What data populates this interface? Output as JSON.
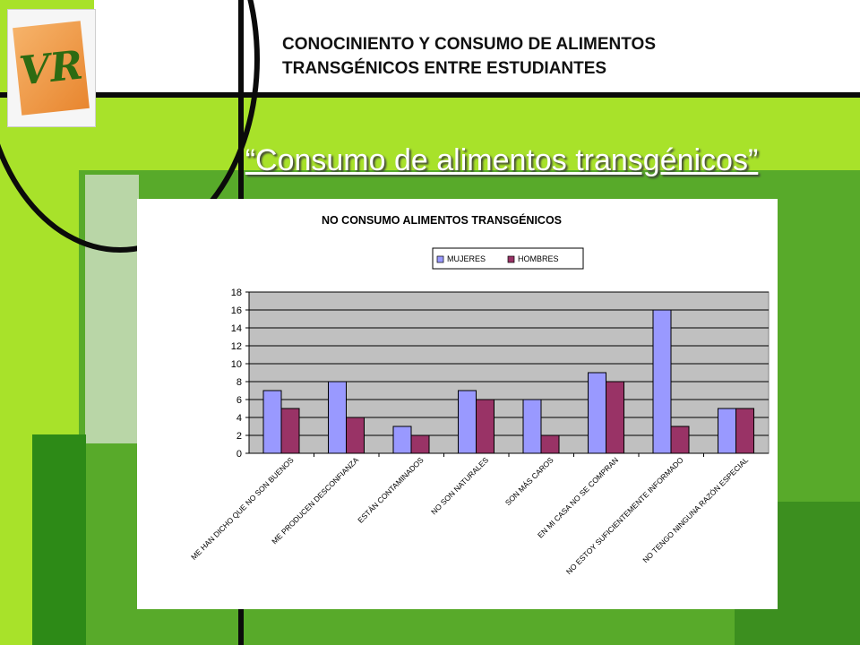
{
  "header": {
    "line1": "CONOCINIENTO Y CONSUMO DE ALIMENTOS",
    "line2": "TRANSGÉNICOS ENTRE ESTUDIANTES"
  },
  "slide_title": "“Consumo de alimentos transgénicos”",
  "logo_text": "VR",
  "colors": {
    "background": "#a8e22a",
    "mujeres": "#9999ff",
    "hombres": "#993366",
    "plot_area": "#c0c0c0"
  },
  "chart_data": {
    "type": "bar",
    "title": "NO CONSUMO ALIMENTOS TRANSGÉNICOS",
    "categories": [
      "ME HAN DICHO QUE NO SON BUENOS",
      "ME PRODUCEN DESCONFIANZA",
      "ESTÁN CONTAMINADOS",
      "NO SON NATURALES",
      "SON MÁS CAROS",
      "EN MI CASA NO SE COMPRAN",
      "NO ESTOY SUFICIENTEMENTE INFORMADO",
      "NO TENGO NINGUNA RAZÓN ESPECIAL"
    ],
    "series": [
      {
        "name": "MUJERES",
        "values": [
          7,
          8,
          3,
          7,
          6,
          9,
          16,
          5
        ]
      },
      {
        "name": "HOMBRES",
        "values": [
          5,
          4,
          2,
          6,
          2,
          8,
          3,
          5
        ]
      }
    ],
    "yticks": [
      "0",
      "2",
      "4",
      "6",
      "8",
      "10",
      "12",
      "14",
      "16",
      "18"
    ],
    "ylim": [
      0,
      18
    ],
    "grid": true,
    "legend_position": "top"
  }
}
